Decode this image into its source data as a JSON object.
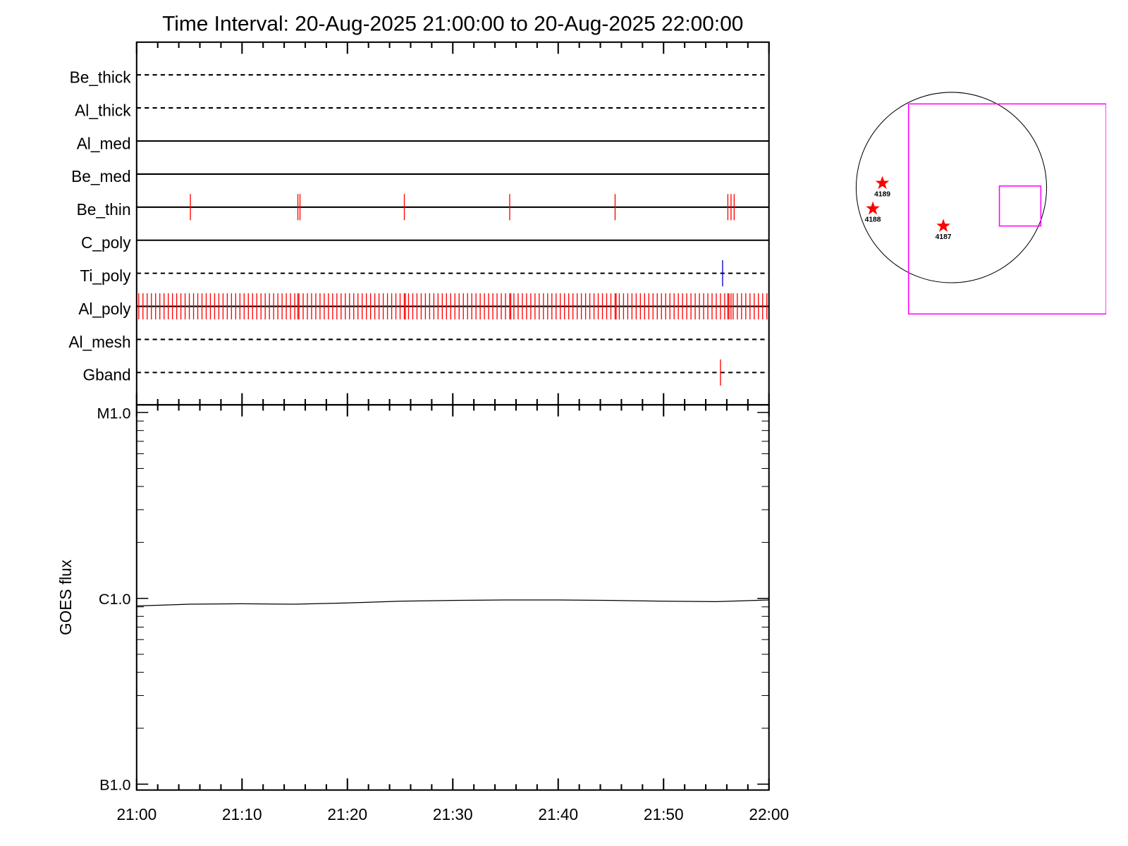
{
  "chart_data": [
    {
      "type": "timeline",
      "title": "Time Interval: 20-Aug-2025 21:00:00 to 20-Aug-2025 22:00:00",
      "rows": [
        {
          "name": "Be_thick",
          "line": "dashed",
          "events": []
        },
        {
          "name": "Al_thick",
          "line": "dashed",
          "events": []
        },
        {
          "name": "Al_med",
          "line": "solid",
          "events": []
        },
        {
          "name": "Be_med",
          "line": "solid",
          "events": []
        },
        {
          "name": "Be_thin",
          "line": "solid",
          "color": "#ff0000",
          "events": [
            5.1,
            15.3,
            15.5,
            25.4,
            35.4,
            45.4,
            56.1,
            56.4,
            56.7
          ]
        },
        {
          "name": "C_poly",
          "line": "solid",
          "events": []
        },
        {
          "name": "Ti_poly",
          "line": "dashed",
          "color": "#0000cc",
          "events": [
            55.6
          ]
        },
        {
          "name": "Al_poly",
          "line": "solid",
          "color": "#ff0000",
          "events": [
            0.2,
            0.6,
            1,
            1.4,
            1.8,
            2.2,
            2.6,
            3,
            3.4,
            3.8,
            4.2,
            4.6,
            5,
            5.4,
            5.8,
            6.2,
            6.6,
            7,
            7.4,
            7.8,
            8.2,
            8.6,
            9,
            9.4,
            9.8,
            10.2,
            10.6,
            11,
            11.4,
            11.8,
            12.2,
            12.6,
            13,
            13.4,
            13.8,
            14.2,
            14.6,
            15,
            15.4,
            15.8,
            16.2,
            16.6,
            17,
            17.4,
            17.8,
            18.2,
            18.6,
            19,
            19.4,
            19.8,
            20.2,
            20.6,
            21,
            21.4,
            21.8,
            22.2,
            22.6,
            23,
            23.4,
            23.8,
            24.2,
            24.6,
            25,
            25.4,
            25.8,
            26.2,
            26.6,
            27,
            27.4,
            27.8,
            28.2,
            28.6,
            29,
            29.4,
            29.8,
            30.2,
            30.6,
            31,
            31.4,
            31.8,
            32.2,
            32.6,
            33,
            33.4,
            33.8,
            34.2,
            34.6,
            35,
            35.4,
            35.8,
            36.2,
            36.6,
            37,
            37.4,
            37.8,
            38.2,
            38.6,
            39,
            39.4,
            39.8,
            40.2,
            40.6,
            41,
            41.4,
            41.8,
            42.2,
            42.6,
            43,
            43.4,
            43.8,
            44.2,
            44.6,
            45,
            45.4,
            45.8,
            46.2,
            46.6,
            47,
            47.4,
            47.8,
            48.2,
            48.6,
            49,
            49.4,
            49.8,
            50.2,
            50.6,
            51,
            51.4,
            51.8,
            52.2,
            52.6,
            53,
            53.4,
            53.8,
            54.2,
            54.6,
            55,
            55.4,
            55.8,
            56.2,
            56.6,
            57,
            57.4,
            57.8,
            58.2,
            58.6,
            59,
            59.4,
            59.8,
            15.3,
            25.5,
            35.5,
            45.5,
            56.1,
            56.4
          ]
        },
        {
          "name": "Al_mesh",
          "line": "dashed",
          "events": []
        },
        {
          "name": "Gband",
          "line": "dashed",
          "color": "#ff0000",
          "events": [
            55.4
          ]
        }
      ]
    },
    {
      "type": "line",
      "y_label": "GOES flux",
      "x": [
        0,
        5,
        10,
        15,
        20,
        25,
        30,
        35,
        40,
        45,
        50,
        55,
        60
      ],
      "values": [
        9.1e-07,
        9.3e-07,
        9.35e-07,
        9.3e-07,
        9.45e-07,
        9.65e-07,
        9.75e-07,
        9.8e-07,
        9.8e-07,
        9.75e-07,
        9.65e-07,
        9.6e-07,
        9.8e-07
      ],
      "color": "#000000",
      "xlim": [
        0,
        60
      ],
      "xticks": [
        {
          "value": 0,
          "label": "21:00"
        },
        {
          "value": 10,
          "label": "21:10"
        },
        {
          "value": 20,
          "label": "21:20"
        },
        {
          "value": 30,
          "label": "21:30"
        },
        {
          "value": 40,
          "label": "21:40"
        },
        {
          "value": 50,
          "label": "21:50"
        },
        {
          "value": 60,
          "label": "22:00"
        }
      ],
      "xminorticks": [
        2,
        4,
        6,
        8,
        12,
        14,
        16,
        18,
        22,
        24,
        26,
        28,
        32,
        34,
        36,
        38,
        42,
        44,
        46,
        48,
        52,
        54,
        56,
        58
      ],
      "yscale": "log",
      "ylim": [
        9.3e-08,
        1.1e-05
      ],
      "yticks": [
        {
          "value": 1e-07,
          "label": "B1.0"
        },
        {
          "value": 1e-06,
          "label": "C1.0"
        },
        {
          "value": 1e-05,
          "label": "M1.0"
        }
      ],
      "yminorticks": [
        2e-07,
        3e-07,
        4e-07,
        5e-07,
        6e-07,
        7e-07,
        8e-07,
        9e-07,
        2e-06,
        3e-06,
        4e-06,
        5e-06,
        6e-06,
        7e-06,
        8e-06,
        9e-06
      ]
    },
    {
      "type": "disk",
      "sun_radius": 960,
      "regions": [
        {
          "label": "4189",
          "x": -696,
          "y": 44
        },
        {
          "label": "4188",
          "x": -792,
          "y": -213
        },
        {
          "label": "4187",
          "x": -81,
          "y": -388
        }
      ],
      "region_color": "#ff0000",
      "fovs": [
        {
          "x": [
            -432,
            1561
          ],
          "y": [
            -1275,
            843
          ]
        },
        {
          "x": [
            484,
            902
          ],
          "y": [
            -388,
            15
          ]
        }
      ],
      "fov_color": "#ff00ff"
    }
  ]
}
